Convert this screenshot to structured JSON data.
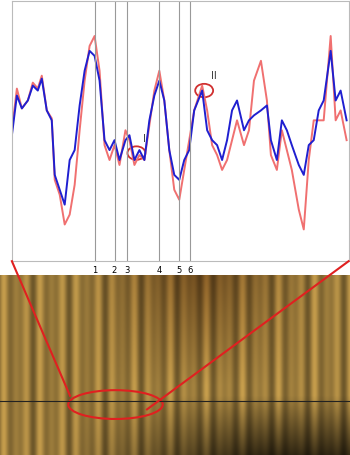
{
  "chart_data": {
    "type": "line",
    "x": [
      0,
      5,
      10,
      16,
      21,
      26,
      30,
      35,
      40,
      43,
      48,
      53,
      58,
      63,
      68,
      73,
      78,
      83,
      88,
      93,
      98,
      103,
      108,
      114,
      118,
      123,
      128,
      133,
      138,
      143,
      148,
      153,
      158,
      163,
      168,
      173,
      178,
      183,
      191,
      196,
      201,
      206,
      211,
      216,
      221,
      226,
      233,
      238,
      243,
      250,
      256,
      260,
      266,
      271,
      276,
      281,
      288,
      293,
      298,
      303,
      308,
      313,
      320,
      325,
      330,
      336
    ],
    "series": [
      {
        "color": "#f07070",
        "values": [
          132,
          174,
          154,
          162,
          180,
          174,
          187,
          152,
          144,
          82,
          67,
          37,
          47,
          77,
          132,
          182,
          217,
          227,
          192,
          117,
          102,
          117,
          97,
          132,
          122,
          97,
          107,
          102,
          137,
          172,
          192,
          162,
          112,
          72,
          62,
          92,
          122,
          152,
          177,
          152,
          117,
          107,
          92,
          102,
          122,
          142,
          117,
          132,
          182,
          202,
          162,
          107,
          92,
          132,
          112,
          92,
          52,
          32,
          102,
          142,
          142,
          142,
          227,
          142,
          152,
          122
        ]
      },
      {
        "color": "#1f1fd0",
        "values": [
          127,
          167,
          154,
          162,
          177,
          172,
          184,
          152,
          142,
          87,
          72,
          57,
          102,
          112,
          157,
          192,
          212,
          207,
          182,
          122,
          112,
          122,
          102,
          122,
          127,
          102,
          112,
          102,
          142,
          167,
          182,
          162,
          112,
          87,
          82,
          102,
          112,
          152,
          172,
          132,
          122,
          117,
          102,
          122,
          152,
          162,
          132,
          142,
          147,
          152,
          157,
          122,
          102,
          142,
          132,
          117,
          97,
          87,
          117,
          122,
          152,
          162,
          212,
          162,
          172,
          142
        ]
      }
    ],
    "xlim": [
      0,
      338
    ],
    "ylim": [
      0,
      262
    ],
    "tick_labels": false,
    "vlines": [
      {
        "x": 83,
        "label": "1"
      },
      {
        "x": 103,
        "label": "2"
      },
      {
        "x": 116,
        "label": "3"
      },
      {
        "x": 148,
        "label": "4"
      },
      {
        "x": 168,
        "label": "5"
      },
      {
        "x": 179,
        "label": "6"
      }
    ],
    "annotations": [
      {
        "text": "I",
        "x": 125,
        "y": 109
      },
      {
        "text": "II",
        "x": 193,
        "y": 172
      }
    ]
  }
}
